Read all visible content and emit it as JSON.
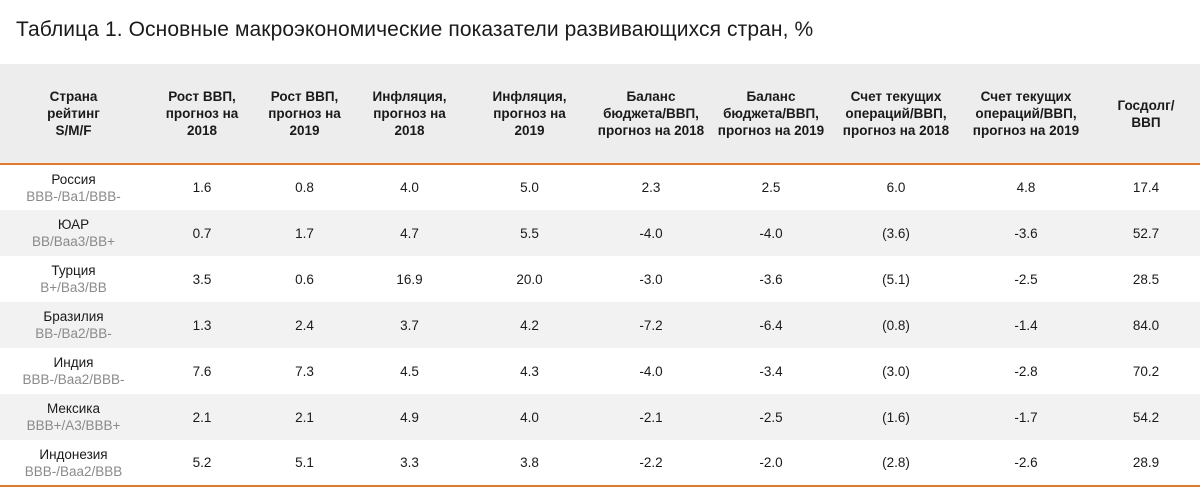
{
  "title": "Таблица 1. Основные макроэкономические показатели развивающихся стран, %",
  "accent_color": "#e07a2c",
  "headers": [
    "Страна рейтинг S/M/F",
    "Рост ВВП, прогноз на 2018",
    "Рост ВВП, прогноз на 2019",
    "Инфляция, прогноз на 2018",
    "Инфляция, прогноз на 2019",
    "Баланс бюджета/ВВП, прогноз на 2018",
    "Баланс бюджета/ВВП, прогноз на 2019",
    "Счет текущих операций/ВВП, прогноз на 2018",
    "Счет текущих операций/ВВП, прогноз на 2019",
    "Госдолг/ ВВП"
  ],
  "rows": [
    {
      "country": "Россия",
      "rating": "BBB-/Ba1/BBB-",
      "values": [
        "1.6",
        "0.8",
        "4.0",
        "5.0",
        "2.3",
        "2.5",
        "6.0",
        "4.8",
        "17.4"
      ]
    },
    {
      "country": "ЮАР",
      "rating": "BB/Baa3/BB+",
      "values": [
        "0.7",
        "1.7",
        "4.7",
        "5.5",
        "-4.0",
        "-4.0",
        "(3.6)",
        "-3.6",
        "52.7"
      ]
    },
    {
      "country": "Турция",
      "rating": "B+/Ba3/BB",
      "values": [
        "3.5",
        "0.6",
        "16.9",
        "20.0",
        "-3.0",
        "-3.6",
        "(5.1)",
        "-2.5",
        "28.5"
      ]
    },
    {
      "country": "Бразилия",
      "rating": "BB-/Ba2/BB-",
      "values": [
        "1.3",
        "2.4",
        "3.7",
        "4.2",
        "-7.2",
        "-6.4",
        "(0.8)",
        "-1.4",
        "84.0"
      ]
    },
    {
      "country": "Индия",
      "rating": "BBB-/Baa2/BBB-",
      "values": [
        "7.6",
        "7.3",
        "4.5",
        "4.3",
        "-4.0",
        "-3.4",
        "(3.0)",
        "-2.8",
        "70.2"
      ]
    },
    {
      "country": "Мексика",
      "rating": "BBB+/A3/BBB+",
      "values": [
        "2.1",
        "2.1",
        "4.9",
        "4.0",
        "-2.1",
        "-2.5",
        "(1.6)",
        "-1.7",
        "54.2"
      ]
    },
    {
      "country": "Индонезия",
      "rating": "BBB-/Baa2/BBB",
      "values": [
        "5.2",
        "5.1",
        "3.3",
        "3.8",
        "-2.2",
        "-2.0",
        "(2.8)",
        "-2.6",
        "28.9"
      ]
    }
  ]
}
